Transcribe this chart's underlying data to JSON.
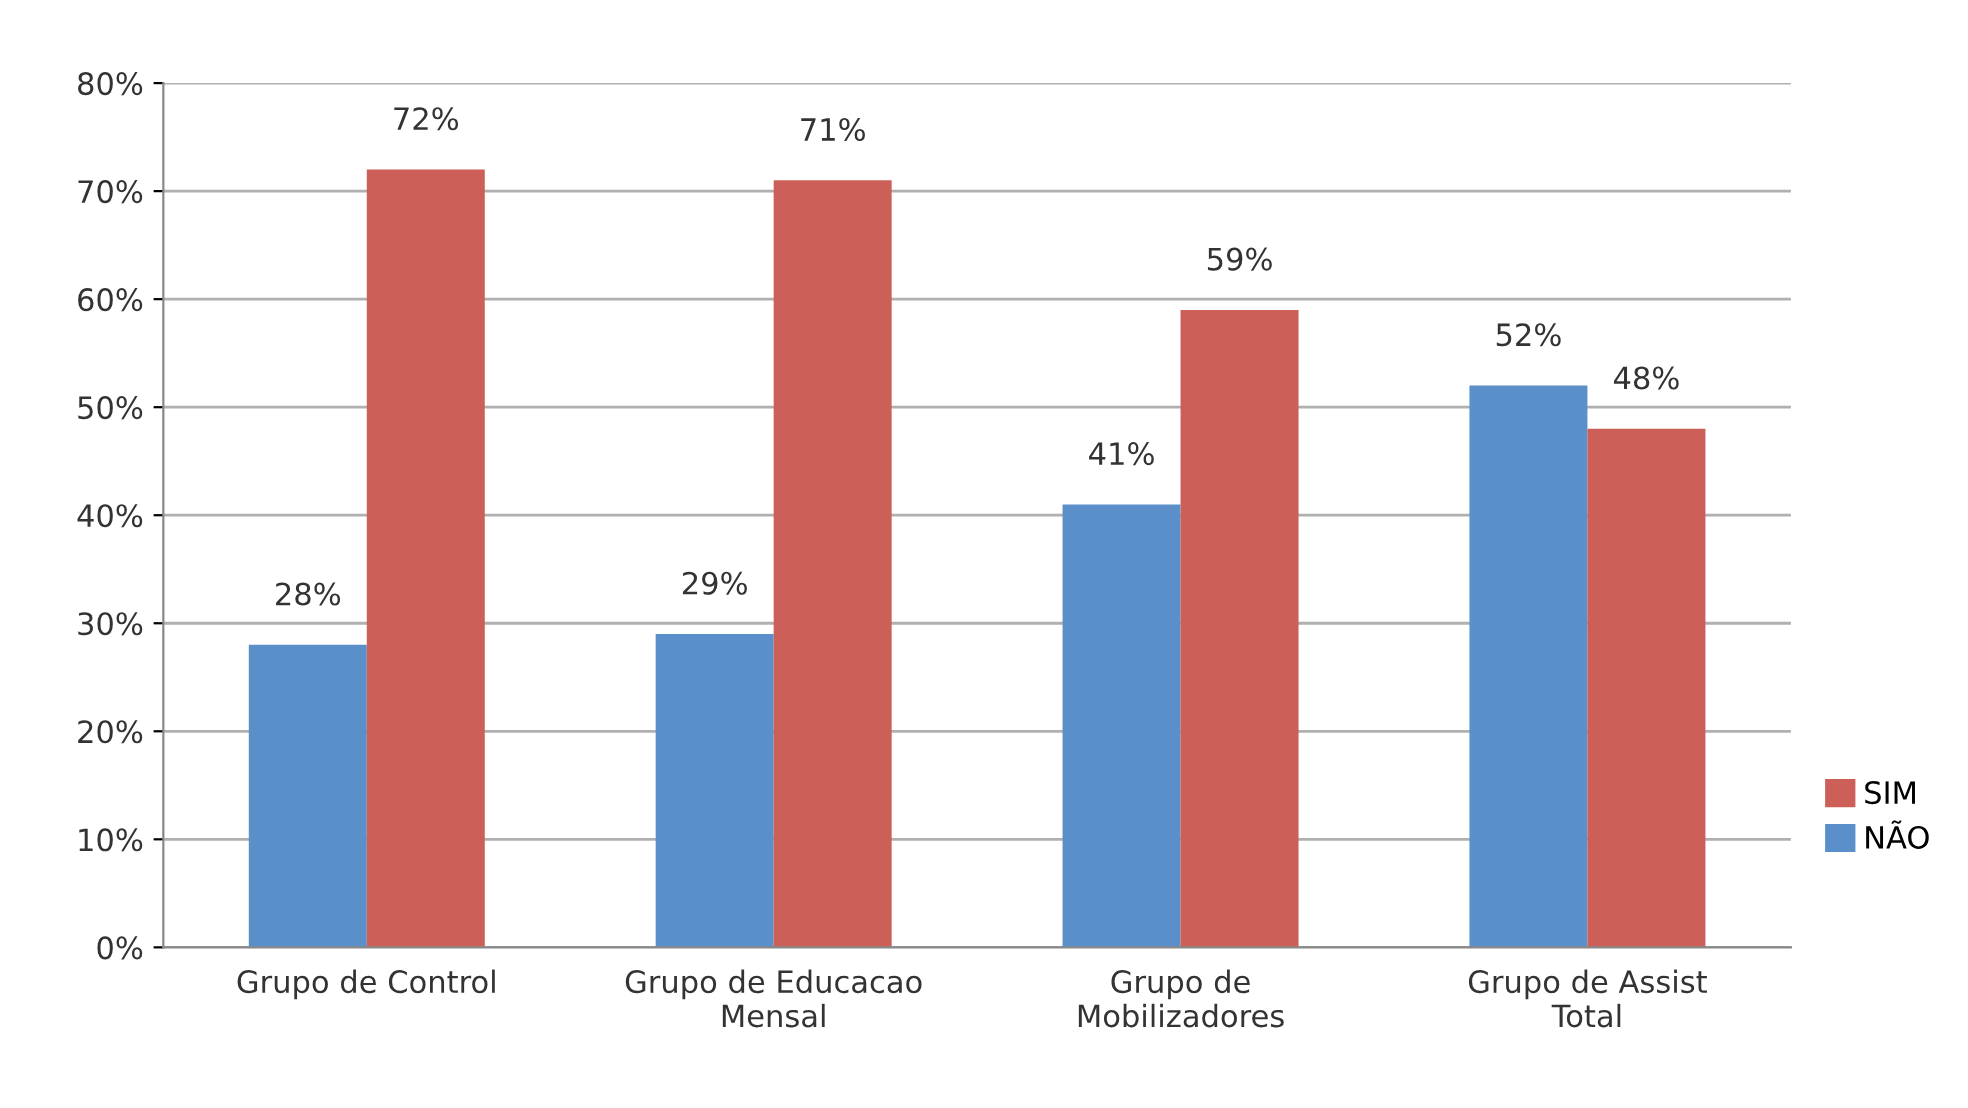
{
  "chart_data": {
    "type": "bar",
    "categories": [
      "Grupo de Control",
      "Grupo de Educacao\nMensal",
      "Grupo de\nMobilizadores",
      "Grupo de Assist\nTotal"
    ],
    "series": [
      {
        "name": "NÃO",
        "color": "#5b8fc9",
        "values": [
          28,
          29,
          41,
          52
        ],
        "value_labels": [
          "28%",
          "29%",
          "41%",
          "52%"
        ]
      },
      {
        "name": "SIM",
        "color": "#cc5f57",
        "values": [
          72,
          71,
          59,
          48
        ],
        "value_labels": [
          "72%",
          "71%",
          "59%",
          "48%"
        ]
      }
    ],
    "ylim": [
      0,
      80
    ],
    "yticks": [
      {
        "value": 0,
        "label": "0%"
      },
      {
        "value": 10,
        "label": "10%"
      },
      {
        "value": 20,
        "label": "20%"
      },
      {
        "value": 30,
        "label": "30%"
      },
      {
        "value": 40,
        "label": "40%"
      },
      {
        "value": 50,
        "label": "50%"
      },
      {
        "value": 60,
        "label": "60%"
      },
      {
        "value": 70,
        "label": "70%"
      },
      {
        "value": 80,
        "label": "80%"
      }
    ],
    "grid": "y",
    "legend": "right"
  }
}
